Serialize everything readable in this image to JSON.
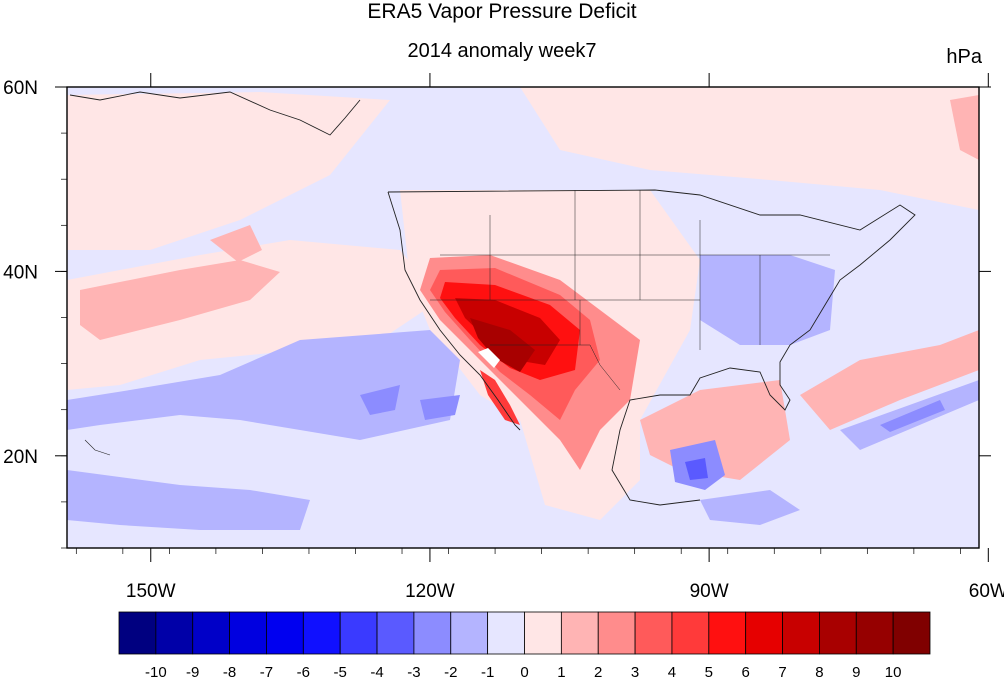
{
  "title": "ERA5 Vapor Pressure Deficit",
  "subtitle": "2014 anomaly week7",
  "units": "hPa",
  "map": {
    "lon_ticks": [
      {
        "lon": -150,
        "label": "150W"
      },
      {
        "lon": -120,
        "label": "120W"
      },
      {
        "lon": -90,
        "label": "90W"
      },
      {
        "lon": -60,
        "label": "60W"
      }
    ],
    "lat_ticks": [
      {
        "lat": 60,
        "label": "60N"
      },
      {
        "lat": 40,
        "label": "40N"
      },
      {
        "lat": 20,
        "label": "20N"
      }
    ],
    "lon_range": [
      -159,
      -61
    ],
    "lat_range": [
      10,
      60
    ]
  },
  "colorbar": {
    "labels": [
      "-10",
      "-9",
      "-8",
      "-7",
      "-6",
      "-5",
      "-4",
      "-3",
      "-2",
      "-1",
      "0",
      "1",
      "2",
      "3",
      "4",
      "5",
      "6",
      "7",
      "8",
      "9",
      "10"
    ],
    "colors": [
      "#000080",
      "#0000a8",
      "#0000c8",
      "#0000e0",
      "#0000f0",
      "#1010ff",
      "#3a3aff",
      "#5a5aff",
      "#8c8cff",
      "#b4b4ff",
      "#e6e6ff",
      "#ffe6e6",
      "#ffb4b4",
      "#ff8c8c",
      "#ff5a5a",
      "#ff3a3a",
      "#ff1010",
      "#e60000",
      "#c80000",
      "#a80000",
      "#960000",
      "#800000"
    ]
  }
}
